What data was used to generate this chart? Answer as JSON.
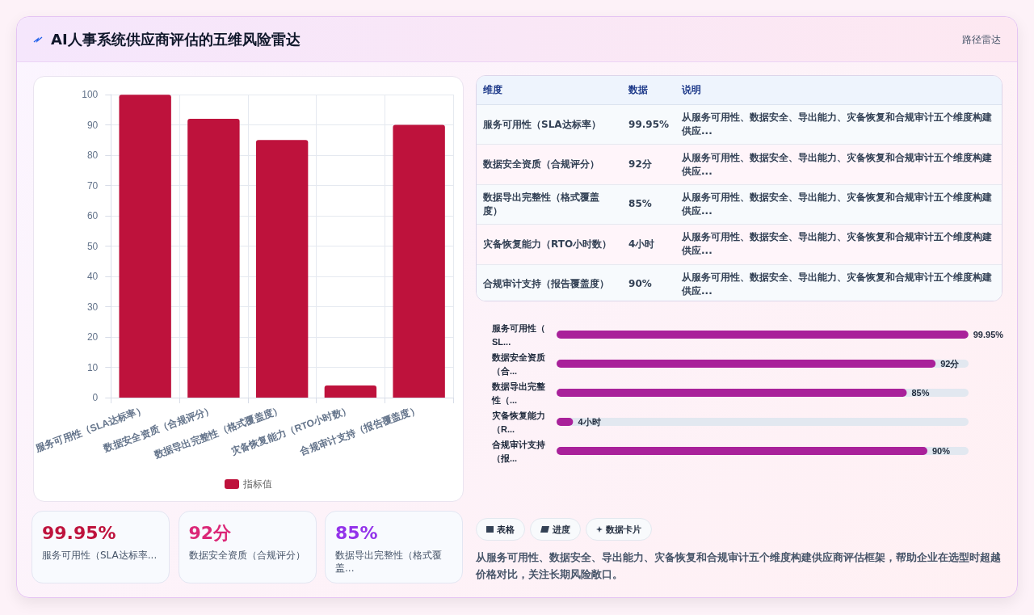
{
  "chart_data": [
    {
      "type": "other",
      "title": "AI人事系统供应商评估的五维风险雷达",
      "subtitle": "路径雷达"
    },
    {
      "type": "bar",
      "categories": [
        "服务可用性（SLA达标率）",
        "数据安全资质（合规评分）",
        "数据导出完整性（格式覆盖度）",
        "灾备恢复能力（RTO小时数）",
        "合规审计支持（报告覆盖度）"
      ],
      "series": [
        {
          "name": "指标值",
          "color": "#be123c",
          "values": [
            99.95,
            92,
            85,
            4,
            90
          ]
        }
      ],
      "ylim": [
        0,
        100
      ],
      "yticks": [
        0,
        10,
        20,
        30,
        40,
        50,
        60,
        70,
        80,
        90,
        100
      ],
      "grid": true,
      "legend": "bottom"
    },
    {
      "type": "bar",
      "orientation": "horizontal",
      "categories": [
        "服务可用性（SL...",
        "数据安全资质（合...",
        "数据导出完整性（...",
        "灾备恢复能力（R...",
        "合规审计支持（报..."
      ],
      "values": [
        99.95,
        92,
        85,
        4,
        90
      ],
      "color": "#a9219a",
      "value_labels": [
        "99.95%",
        "92分",
        "85%",
        "4小时",
        "90%"
      ]
    },
    {
      "type": "other",
      "annotations": [
        "维度",
        "数据",
        "说明",
        "服务可用性（SLA达标率）",
        "99.95%",
        "从服务可用性、数据安全、导出能力、灾备恢复和合规审计五个维度构建供应...",
        "数据安全资质（合规评分）",
        "92分",
        "从服务可用性、数据安全、导出能力、灾备恢复和合规审计五个维度构建供应...",
        "数据导出完整性（格式覆盖度）",
        "85%",
        "从服务可用性、数据安全、导出能力、灾备恢复和合规审计五个维度构建供应...",
        "灾备恢复能力（RTO小时数）",
        "4小时",
        "从服务可用性、数据安全、导出能力、灾备恢复和合规审计五个维度构建供应...",
        "合规审计支持（报告覆盖度）",
        "90%",
        "从服务可用性、数据安全、导出能力、灾备恢复和合规审计五个维度构建供应..."
      ]
    },
    {
      "type": "other",
      "annotations": [
        "99.95%",
        "服务可用性（SLA达标率...",
        "92分",
        "数据安全资质（合规评分）",
        "85%",
        "数据导出完整性（格式覆盖..."
      ]
    },
    {
      "type": "other",
      "annotations": [
        "表格",
        "进度",
        "数据卡片",
        "从服务可用性、数据安全、导出能力、灾备恢复和合规审计五个维度构建供应商评估框架，帮助企业在选型时超越价格对比，关注长期风险敞口。"
      ]
    }
  ]
}
